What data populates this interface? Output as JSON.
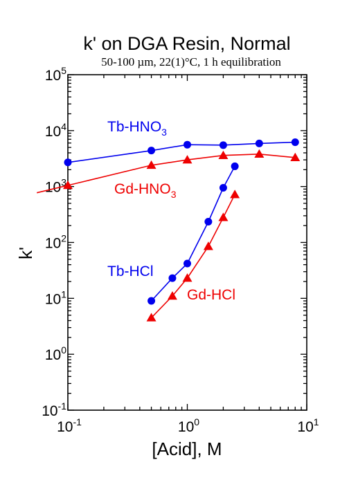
{
  "chart_data": {
    "type": "line",
    "title": "k' on DGA Resin, Normal",
    "subtitle": "50-100 µm, 22(1)°C, 1 h equilibration",
    "xlabel": "[Acid], M",
    "ylabel": "k'",
    "xscale": "log",
    "yscale": "log",
    "xlim": [
      0.1,
      10
    ],
    "ylim": [
      0.1,
      100000
    ],
    "x_ticks": [
      {
        "base": "10",
        "exp": "-1",
        "value": 0.1
      },
      {
        "base": "10",
        "exp": "0",
        "value": 1
      },
      {
        "base": "10",
        "exp": "1",
        "value": 10
      }
    ],
    "y_ticks": [
      {
        "base": "10",
        "exp": "-1",
        "value": 0.1
      },
      {
        "base": "10",
        "exp": "0",
        "value": 1
      },
      {
        "base": "10",
        "exp": "1",
        "value": 10
      },
      {
        "base": "10",
        "exp": "2",
        "value": 100
      },
      {
        "base": "10",
        "exp": "3",
        "value": 1000
      },
      {
        "base": "10",
        "exp": "4",
        "value": 10000
      },
      {
        "base": "10",
        "exp": "5",
        "value": 100000
      }
    ],
    "grid": false,
    "series": [
      {
        "label_main": "Tb-HNO",
        "label_sub": "3",
        "color": "#0000ee",
        "marker": "circle",
        "x": [
          0.1,
          0.5,
          1,
          2,
          4,
          8
        ],
        "y": [
          2700,
          4400,
          5600,
          5500,
          5900,
          6200
        ]
      },
      {
        "label_main": "Gd-HNO",
        "label_sub": "3",
        "color": "#ee0000",
        "marker": "triangle",
        "x": [
          0.1,
          0.5,
          1,
          2,
          4,
          8
        ],
        "y": [
          1050,
          2400,
          3000,
          3600,
          3800,
          3300
        ],
        "extrapolated_from": 0.055
      },
      {
        "label_main": "Tb-HCl",
        "label_sub": "",
        "color": "#0000ee",
        "marker": "circle",
        "x": [
          0.5,
          0.75,
          1,
          1.5,
          2,
          2.5
        ],
        "y": [
          9,
          23,
          42,
          235,
          950,
          2300
        ]
      },
      {
        "label_main": "Gd-HCl",
        "label_sub": "",
        "color": "#ee0000",
        "marker": "triangle",
        "x": [
          0.5,
          0.75,
          1,
          1.5,
          2,
          2.5
        ],
        "y": [
          4.5,
          11,
          23,
          85,
          280,
          720
        ]
      }
    ]
  }
}
